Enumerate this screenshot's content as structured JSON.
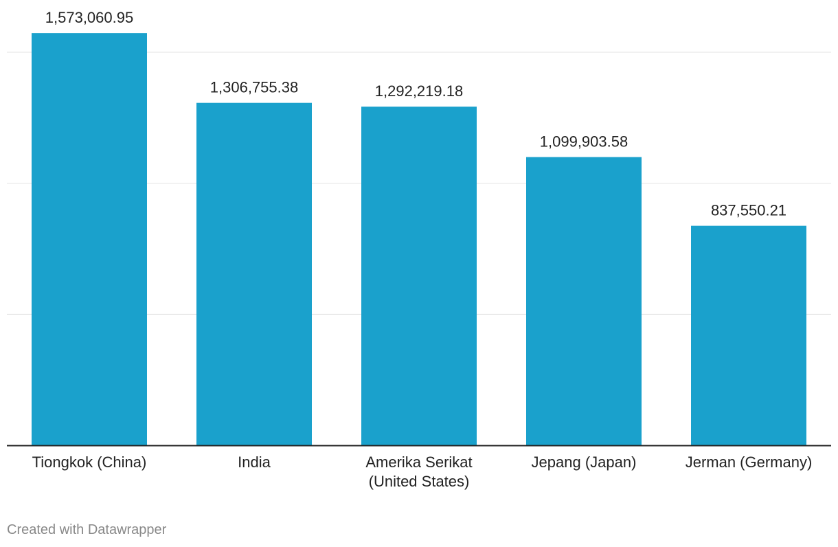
{
  "chart_data": {
    "type": "bar",
    "categories": [
      [
        "Tiongkok (China)"
      ],
      [
        "India"
      ],
      [
        "Amerika Serikat",
        "(United States)"
      ],
      [
        "Jepang (Japan)"
      ],
      [
        "Jerman (Germany)"
      ]
    ],
    "values": [
      1573060.95,
      1306755.38,
      1292219.18,
      1099903.58,
      837550.21
    ],
    "value_labels": [
      "1,573,060.95",
      "1,306,755.38",
      "1,292,219.18",
      "1,099,903.58",
      "837,550.21"
    ],
    "ylim": [
      0,
      1500000
    ],
    "gridlines": [
      500000,
      1000000,
      1500000
    ],
    "grid": true,
    "bar_color": "#1aa1cc"
  },
  "footer": {
    "credit": "Created with Datawrapper"
  }
}
